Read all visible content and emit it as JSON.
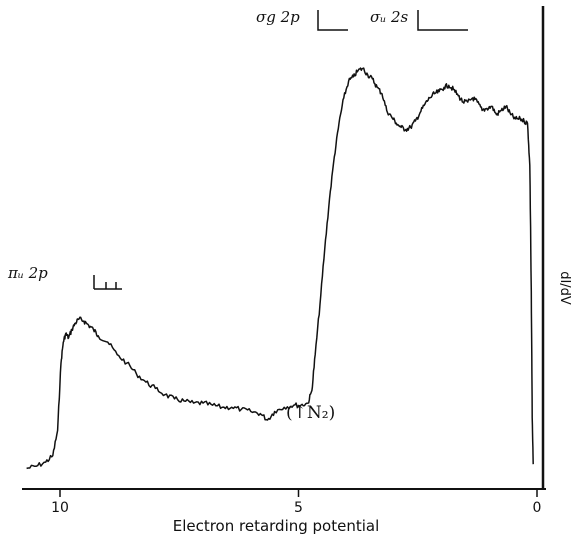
{
  "chart_data": {
    "type": "line",
    "xlabel": "Electron retarding potential",
    "ylabel": "dI/dV",
    "x_reversed": true,
    "xlim": [
      10.7,
      -0.2
    ],
    "ylim": [
      0,
      1.0
    ],
    "xticks": [
      {
        "value": 10,
        "label": "10"
      },
      {
        "value": 5,
        "label": "5"
      },
      {
        "value": 0,
        "label": "0"
      }
    ],
    "annotations": [
      {
        "text": "πᵤ 2p",
        "x": 10.5,
        "y": 0.41
      },
      {
        "text": "σg 2p",
        "x": 4.65,
        "y": 1.02
      },
      {
        "text": "σᵤ 2s",
        "x": 2.15,
        "y": 1.02
      },
      {
        "text": "(↑N₂)",
        "x": 5.2,
        "y": 0.1
      }
    ],
    "series": [
      {
        "x": [
          10.7,
          10.5,
          10.3,
          10.15,
          10.05,
          9.98,
          9.93,
          9.88,
          9.82,
          9.75,
          9.68,
          9.6,
          9.5,
          9.4,
          9.3,
          9.2,
          9.0,
          8.8,
          8.6,
          8.4,
          8.2,
          8.0,
          7.8,
          7.6,
          7.4,
          7.2,
          7.0,
          6.8,
          6.6,
          6.4,
          6.2,
          6.0,
          5.8,
          5.65,
          5.5,
          5.3,
          5.1,
          4.95,
          4.8,
          4.72,
          4.65,
          4.55,
          4.45,
          4.35,
          4.25,
          4.15,
          4.05,
          3.95,
          3.85,
          3.75,
          3.65,
          3.55,
          3.45,
          3.35,
          3.25,
          3.15,
          3.05,
          2.95,
          2.85,
          2.75,
          2.65,
          2.55,
          2.45,
          2.35,
          2.25,
          2.15,
          2.05,
          1.95,
          1.85,
          1.75,
          1.65,
          1.55,
          1.45,
          1.35,
          1.25,
          1.15,
          1.05,
          0.95,
          0.85,
          0.75,
          0.65,
          0.55,
          0.45,
          0.35,
          0.27,
          0.2,
          0.15,
          0.12,
          0.1,
          0.08
        ],
        "y": [
          0.03,
          0.035,
          0.045,
          0.06,
          0.12,
          0.28,
          0.33,
          0.35,
          0.34,
          0.36,
          0.375,
          0.385,
          0.38,
          0.37,
          0.36,
          0.345,
          0.33,
          0.3,
          0.28,
          0.255,
          0.235,
          0.22,
          0.205,
          0.195,
          0.19,
          0.185,
          0.185,
          0.18,
          0.175,
          0.175,
          0.17,
          0.165,
          0.16,
          0.145,
          0.165,
          0.175,
          0.18,
          0.18,
          0.185,
          0.215,
          0.3,
          0.42,
          0.55,
          0.67,
          0.77,
          0.85,
          0.91,
          0.95,
          0.96,
          0.975,
          0.98,
          0.965,
          0.955,
          0.935,
          0.92,
          0.88,
          0.865,
          0.85,
          0.84,
          0.835,
          0.84,
          0.855,
          0.875,
          0.895,
          0.91,
          0.92,
          0.925,
          0.935,
          0.94,
          0.93,
          0.915,
          0.9,
          0.9,
          0.91,
          0.9,
          0.88,
          0.885,
          0.89,
          0.87,
          0.88,
          0.89,
          0.87,
          0.86,
          0.86,
          0.855,
          0.85,
          0.75,
          0.45,
          0.15,
          0.04
        ]
      }
    ],
    "grid": false
  }
}
